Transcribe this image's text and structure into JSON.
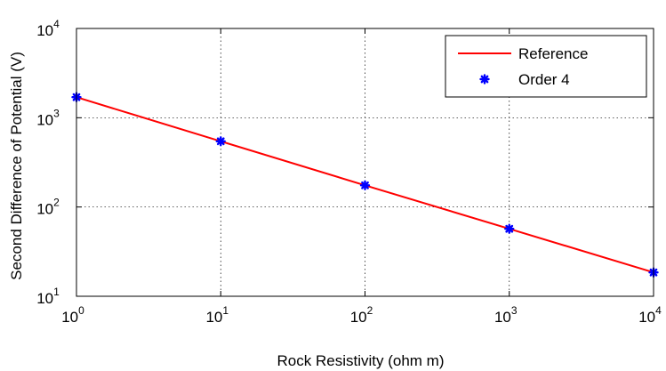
{
  "chart_data": {
    "type": "line",
    "xscale": "log",
    "yscale": "log",
    "xlim": [
      1,
      10000
    ],
    "ylim": [
      10,
      10000
    ],
    "xlabel": "Rock Resistivity (ohm m)",
    "ylabel": "Second Difference of Potential (V)",
    "xticks": [
      {
        "value": 1,
        "base": "10",
        "exp": "0"
      },
      {
        "value": 10,
        "base": "10",
        "exp": "1"
      },
      {
        "value": 100,
        "base": "10",
        "exp": "2"
      },
      {
        "value": 1000,
        "base": "10",
        "exp": "3"
      },
      {
        "value": 10000,
        "base": "10",
        "exp": "4"
      }
    ],
    "yticks": [
      {
        "value": 10,
        "base": "10",
        "exp": "1"
      },
      {
        "value": 100,
        "base": "10",
        "exp": "2"
      },
      {
        "value": 1000,
        "base": "10",
        "exp": "3"
      },
      {
        "value": 10000,
        "base": "10",
        "exp": "4"
      }
    ],
    "grid": true,
    "legend_position": "top-right",
    "series": [
      {
        "name": "Reference",
        "style": "line",
        "color": "#ff0000",
        "x": [
          1,
          10,
          100,
          1000,
          10000
        ],
        "y": [
          1700,
          545,
          175,
          57,
          18.5
        ]
      },
      {
        "name": "Order 4",
        "style": "markers",
        "marker": "asterisk",
        "color": "#0000ff",
        "x": [
          1,
          10,
          100,
          1000,
          10000
        ],
        "y": [
          1700,
          545,
          175,
          57,
          18.5
        ]
      }
    ]
  }
}
